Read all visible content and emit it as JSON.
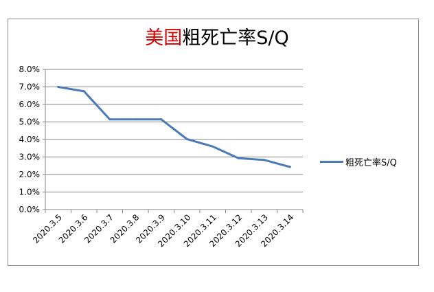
{
  "chart_data": {
    "type": "line",
    "title_part1": "美国",
    "title_part2": "粗死亡率S/Q",
    "categories": [
      "2020.3.5",
      "2020.3.6",
      "2020.3.7",
      "2020.3.8",
      "2020.3.9",
      "2020.3.10",
      "2020.3.11",
      "2020.3.12",
      "2020.3.13",
      "2020.3.14"
    ],
    "series": [
      {
        "name": "粗死亡率S/Q",
        "values": [
          7.0,
          6.75,
          5.15,
          5.15,
          5.15,
          4.02,
          3.6,
          2.93,
          2.83,
          2.43
        ]
      }
    ],
    "y_ticks": [
      "0.0%",
      "1.0%",
      "2.0%",
      "3.0%",
      "4.0%",
      "5.0%",
      "6.0%",
      "7.0%",
      "8.0%"
    ],
    "ylim": [
      0,
      8
    ],
    "y_unit": "%",
    "grid": true,
    "legend_position": "right",
    "colors": {
      "series": "#4a7ab8",
      "grid": "#858585",
      "title_part1": "#d90000"
    }
  }
}
